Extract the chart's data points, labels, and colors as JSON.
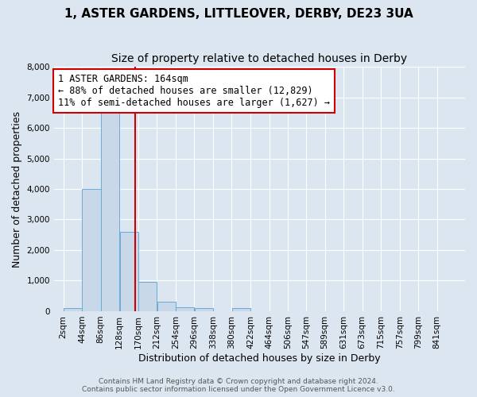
{
  "title_line1": "1, ASTER GARDENS, LITTLEOVER, DERBY, DE23 3UA",
  "title_line2": "Size of property relative to detached houses in Derby",
  "xlabel": "Distribution of detached houses by size in Derby",
  "ylabel": "Number of detached properties",
  "bin_labels": [
    "2sqm",
    "44sqm",
    "86sqm",
    "128sqm",
    "170sqm",
    "212sqm",
    "254sqm",
    "296sqm",
    "338sqm",
    "380sqm",
    "422sqm",
    "464sqm",
    "506sqm",
    "547sqm",
    "589sqm",
    "631sqm",
    "673sqm",
    "715sqm",
    "757sqm",
    "799sqm",
    "841sqm"
  ],
  "bin_left_edges": [
    2,
    44,
    86,
    128,
    170,
    212,
    254,
    296,
    338,
    380,
    422,
    464,
    506,
    547,
    589,
    631,
    673,
    715,
    757,
    799,
    841
  ],
  "bar_heights": [
    100,
    4000,
    6500,
    2600,
    950,
    300,
    120,
    100,
    0,
    100,
    0,
    0,
    0,
    0,
    0,
    0,
    0,
    0,
    0,
    0,
    0
  ],
  "bar_color": "#c8d8e8",
  "bar_edge_color": "#6aaad4",
  "property_size": 164,
  "vline_color": "#cc0000",
  "annotation_text": "1 ASTER GARDENS: 164sqm\n← 88% of detached houses are smaller (12,829)\n11% of semi-detached houses are larger (1,627) →",
  "annotation_box_facecolor": "#ffffff",
  "annotation_box_edgecolor": "#cc0000",
  "ylim": [
    0,
    8000
  ],
  "yticks": [
    0,
    1000,
    2000,
    3000,
    4000,
    5000,
    6000,
    7000,
    8000
  ],
  "background_color": "#dce6f0",
  "grid_color": "#ffffff",
  "footer_line1": "Contains HM Land Registry data © Crown copyright and database right 2024.",
  "footer_line2": "Contains public sector information licensed under the Open Government Licence v3.0.",
  "title_fontsize": 11,
  "subtitle_fontsize": 10,
  "axis_label_fontsize": 9,
  "tick_fontsize": 7.5,
  "annotation_fontsize": 8.5,
  "footer_fontsize": 6.5
}
